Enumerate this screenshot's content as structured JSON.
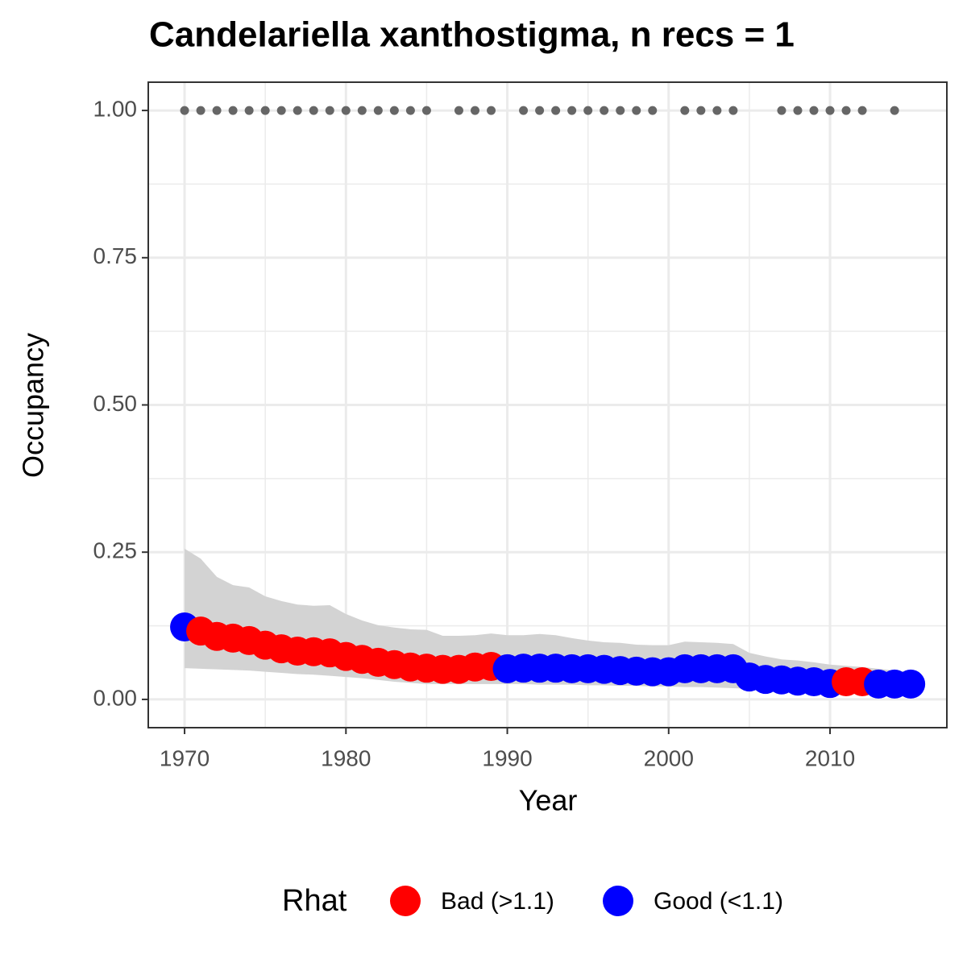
{
  "chart_data": {
    "type": "scatter",
    "title": "Candelariella xanthostigma, n recs = 1",
    "x_label": "Year",
    "y_label": "Occupancy",
    "legend_title": "Rhat",
    "legend_position": "bottom",
    "grid": true,
    "x": [
      1970,
      1971,
      1972,
      1973,
      1974,
      1975,
      1976,
      1977,
      1978,
      1979,
      1980,
      1981,
      1982,
      1983,
      1984,
      1985,
      1986,
      1987,
      1988,
      1989,
      1990,
      1991,
      1992,
      1993,
      1994,
      1995,
      1996,
      1997,
      1998,
      1999,
      2000,
      2001,
      2002,
      2003,
      2004,
      2005,
      2006,
      2007,
      2008,
      2009,
      2010,
      2011,
      2012,
      2013,
      2014,
      2015
    ],
    "series": [
      {
        "name": "Bad (>1.1)",
        "color": "#ff0000",
        "values": [
          null,
          0.116,
          0.107,
          0.104,
          0.1,
          0.092,
          0.086,
          0.082,
          0.081,
          0.079,
          0.073,
          0.068,
          0.063,
          0.059,
          0.055,
          0.053,
          0.051,
          0.051,
          0.055,
          0.056,
          null,
          null,
          null,
          null,
          null,
          null,
          null,
          null,
          null,
          null,
          null,
          null,
          null,
          null,
          null,
          null,
          null,
          null,
          null,
          null,
          null,
          0.03,
          0.03,
          null,
          null,
          null
        ]
      },
      {
        "name": "Good (<1.1)",
        "color": "#0000ff",
        "values": [
          0.123,
          null,
          null,
          null,
          null,
          null,
          null,
          null,
          null,
          null,
          null,
          null,
          null,
          null,
          null,
          null,
          null,
          null,
          null,
          null,
          0.052,
          0.053,
          0.053,
          0.053,
          0.052,
          0.052,
          0.051,
          0.049,
          0.048,
          0.047,
          0.047,
          0.052,
          0.052,
          0.052,
          0.052,
          0.038,
          0.034,
          0.033,
          0.031,
          0.03,
          0.027,
          null,
          null,
          0.026,
          0.026,
          0.026
        ]
      }
    ],
    "band": {
      "color": "#d3d3d3",
      "upper": [
        0.256,
        0.239,
        0.208,
        0.194,
        0.19,
        0.175,
        0.167,
        0.161,
        0.159,
        0.16,
        0.145,
        0.134,
        0.126,
        0.122,
        0.119,
        0.118,
        0.108,
        0.108,
        0.109,
        0.112,
        0.109,
        0.109,
        0.111,
        0.109,
        0.104,
        0.1,
        0.097,
        0.096,
        0.093,
        0.092,
        0.092,
        0.098,
        0.097,
        0.096,
        0.094,
        0.079,
        0.073,
        0.068,
        0.066,
        0.063,
        0.059,
        0.057,
        0.055,
        0.052,
        0.049,
        0.047
      ],
      "lower": [
        0.053,
        0.052,
        0.051,
        0.05,
        0.049,
        0.047,
        0.045,
        0.043,
        0.042,
        0.04,
        0.038,
        0.036,
        0.033,
        0.03,
        0.028,
        0.026,
        0.026,
        0.026,
        0.026,
        0.026,
        0.026,
        0.026,
        0.025,
        0.025,
        0.025,
        0.024,
        0.024,
        0.023,
        0.023,
        0.022,
        0.022,
        0.021,
        0.021,
        0.02,
        0.019,
        0.018,
        0.018,
        0.017,
        0.016,
        0.015,
        0.014,
        0.013,
        0.013,
        0.012,
        0.012,
        0.011
      ]
    },
    "records": {
      "color": "#666666",
      "x": [
        1970,
        1971,
        1972,
        1973,
        1974,
        1975,
        1976,
        1977,
        1978,
        1979,
        1980,
        1981,
        1982,
        1983,
        1984,
        1985,
        1987,
        1988,
        1989,
        1991,
        1992,
        1993,
        1994,
        1995,
        1996,
        1997,
        1998,
        1999,
        2001,
        2002,
        2003,
        2004,
        2007,
        2008,
        2009,
        2010,
        2011,
        2012,
        2014
      ],
      "y": [
        1,
        1,
        1,
        1,
        1,
        1,
        1,
        1,
        1,
        1,
        1,
        1,
        1,
        1,
        1,
        1,
        1,
        1,
        1,
        1,
        1,
        1,
        1,
        1,
        1,
        1,
        1,
        1,
        1,
        1,
        1,
        1,
        1,
        1,
        1,
        1,
        1,
        1,
        1
      ]
    },
    "xlim": [
      1967.75,
      2017.24
    ],
    "ylim": [
      -0.048,
      1.048
    ],
    "xticks": [
      1970,
      1980,
      1990,
      2000,
      2010
    ],
    "yticks": [
      {
        "value": 0,
        "label": "0.00"
      },
      {
        "value": 0.25,
        "label": "0.25"
      },
      {
        "value": 0.5,
        "label": "0.50"
      },
      {
        "value": 0.75,
        "label": "0.75"
      },
      {
        "value": 1,
        "label": "1.00"
      }
    ]
  }
}
